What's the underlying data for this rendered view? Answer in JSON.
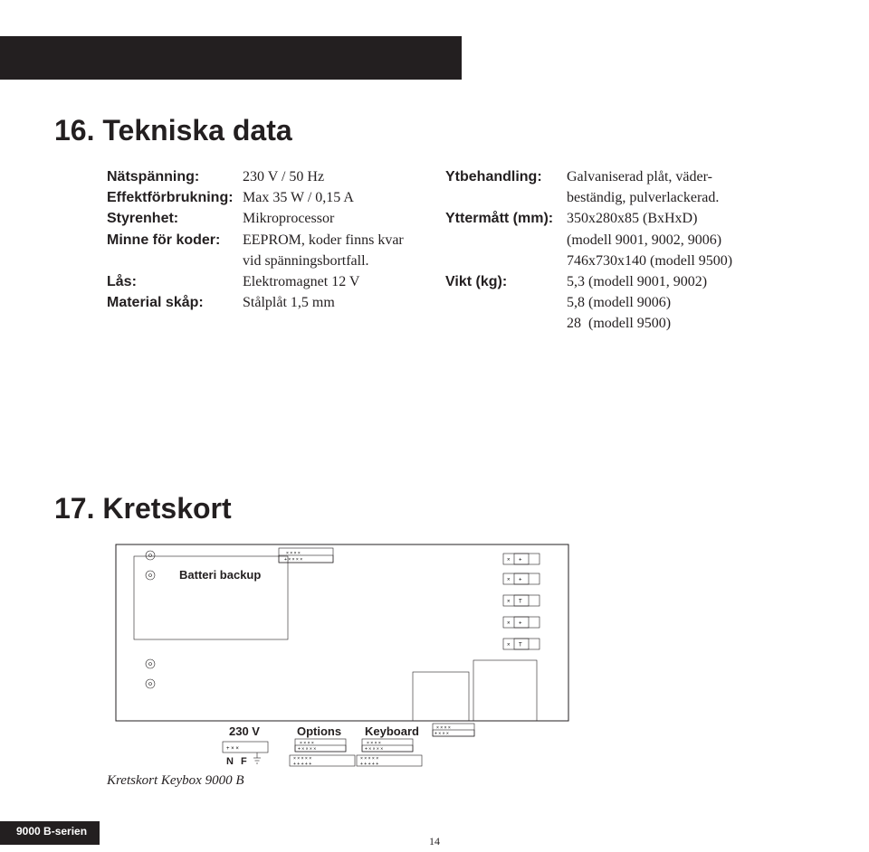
{
  "headings": {
    "section1": "16. Tekniska data",
    "section2": "17. Kretskort"
  },
  "specs_left": [
    {
      "label": "Nätspänning:",
      "value": "230 V / 50 Hz"
    },
    {
      "label": "Effektförbrukning:",
      "value": "Max 35 W / 0,15 A"
    },
    {
      "label": "Styrenhet:",
      "value": "Mikroprocessor"
    },
    {
      "label": "Minne för koder:",
      "value": "EEPROM, koder finns kvar"
    },
    {
      "label": "",
      "value": "vid spänningsbortfall."
    },
    {
      "label": "Lås:",
      "value": "Elektromagnet 12 V"
    },
    {
      "label": "Material skåp:",
      "value": "Stålplåt 1,5 mm"
    }
  ],
  "specs_right": [
    {
      "label": "Ytbehandling:",
      "value": "Galvaniserad plåt, väder-"
    },
    {
      "label": "",
      "value": "beständig, pulverlackerad."
    },
    {
      "label": "Yttermått (mm):",
      "value": "350x280x85 (BxHxD)"
    },
    {
      "label": "",
      "value": "(modell 9001, 9002, 9006)"
    },
    {
      "label": "",
      "value": "746x730x140 (modell 9500)"
    },
    {
      "label": "Vikt (kg):",
      "value": "5,3 (modell 9001, 9002)"
    },
    {
      "label": "",
      "value": "5,8 (modell 9006)"
    },
    {
      "label": "",
      "value": "28  (modell 9500)"
    }
  ],
  "board": {
    "batteri_label": "Batteri backup",
    "v_label": "230 V",
    "options_label": "Options",
    "keyboard_label": "Keyboard",
    "n_label": "N",
    "f_label": "F",
    "caption": "Kretskort Keybox 9000 B"
  },
  "footer": {
    "series": "9000 B-serien",
    "page": "14"
  },
  "style": {
    "text_color": "#231f20",
    "bg_color": "#ffffff",
    "title_fontsize": 32,
    "body_fontsize": 16,
    "caption_fontsize": 15,
    "footer_fontsize": 12,
    "bar_color": "#231f20"
  }
}
